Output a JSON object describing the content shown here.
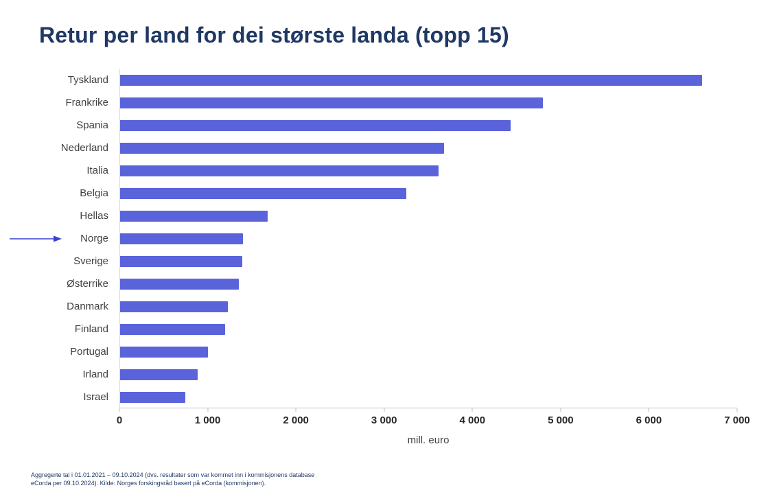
{
  "title": "Retur per land for dei største landa (topp 15)",
  "chart_data": {
    "type": "bar",
    "orientation": "horizontal",
    "title": "Retur per land for dei største landa (topp 15)",
    "categories": [
      "Tyskland",
      "Frankrike",
      "Spania",
      "Nederland",
      "Italia",
      "Belgia",
      "Hellas",
      "Norge",
      "Sverige",
      "Østerrike",
      "Danmark",
      "Finland",
      "Portugal",
      "Irland",
      "Israel"
    ],
    "values": [
      6600,
      4800,
      4430,
      3680,
      3620,
      3250,
      1680,
      1400,
      1390,
      1350,
      1230,
      1200,
      1000,
      890,
      750
    ],
    "xlabel": "mill. euro",
    "xlim": [
      0,
      7000
    ],
    "xticks": [
      0,
      1000,
      2000,
      3000,
      4000,
      5000,
      6000,
      7000
    ],
    "xtick_labels": [
      "0",
      "1 000",
      "2 000",
      "3 000",
      "4 000",
      "5 000",
      "6 000",
      "7 000"
    ],
    "bar_color": "#5B63DB",
    "grid": false,
    "legend": false,
    "annotation": {
      "type": "arrow",
      "target": "Norge",
      "color": "#3A3FD6"
    }
  },
  "footnote": {
    "line1": "Aggregerte tal i 01.01.2021 – 09.10.2024 (dvs. resultater som var kommet inn i kommisjonens database",
    "line2": "eCorda per 09.10.2024). Kilde: Norges forskingsråd basert på eCorda (kommisjonen)."
  },
  "colors": {
    "title": "#1F3864",
    "bar": "#5B63DB",
    "axis": "#BFBFBF",
    "category_label": "#404040",
    "tick_label": "#262626",
    "footnote": "#1F3864",
    "arrow": "#3A3FD6"
  }
}
